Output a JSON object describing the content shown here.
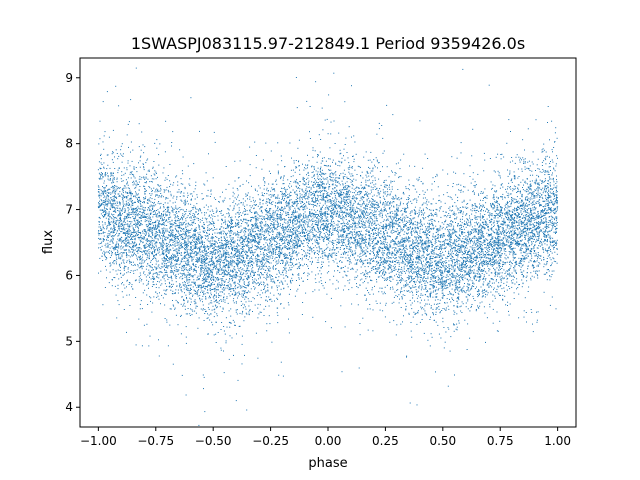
{
  "chart_data": {
    "type": "scatter",
    "title": "1SWASPJ083115.97-212849.1 Period 9359426.0s",
    "xlabel": "phase",
    "ylabel": "flux",
    "xlim": [
      -1.08,
      1.08
    ],
    "ylim": [
      3.7,
      9.3
    ],
    "xticks": [
      -1.0,
      -0.75,
      -0.5,
      -0.25,
      0.0,
      0.25,
      0.5,
      0.75,
      1.0
    ],
    "xtick_labels": [
      "−1.00",
      "−0.75",
      "−0.50",
      "−0.25",
      "0.00",
      "0.25",
      "0.50",
      "0.75",
      "1.00"
    ],
    "yticks": [
      4,
      5,
      6,
      7,
      8,
      9
    ],
    "ytick_labels": [
      "4",
      "5",
      "6",
      "7",
      "8",
      "9"
    ],
    "grid": false,
    "legend": "none",
    "marker_color": "#1f77b4",
    "trend": {
      "x": [
        -1.0,
        -0.9,
        -0.75,
        -0.6,
        -0.5,
        -0.4,
        -0.25,
        -0.1,
        0.0,
        0.1,
        0.25,
        0.4,
        0.5,
        0.6,
        0.75,
        0.9,
        1.0
      ],
      "y": [
        6.95,
        6.85,
        6.6,
        6.35,
        6.2,
        6.35,
        6.55,
        6.85,
        7.0,
        6.85,
        6.6,
        6.35,
        6.2,
        6.35,
        6.55,
        6.85,
        7.0
      ]
    },
    "scatter_sigma": 0.45,
    "n_points": 14000
  }
}
